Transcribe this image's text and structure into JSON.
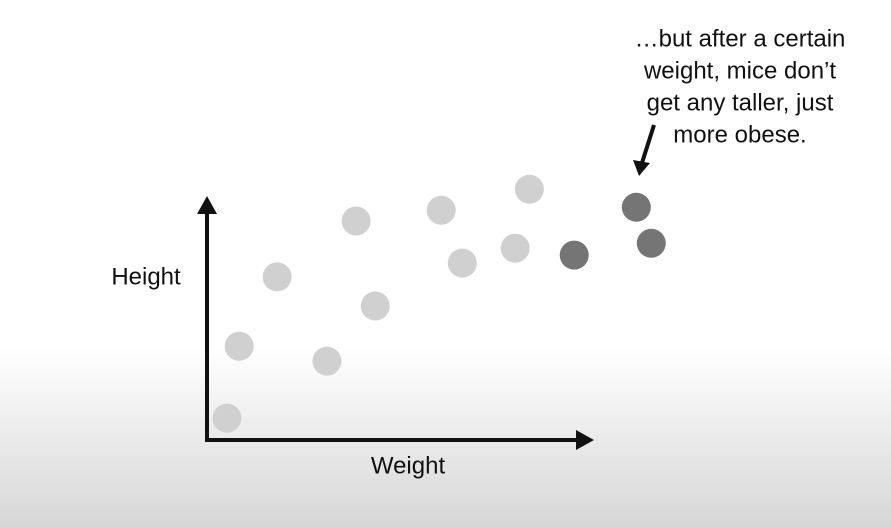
{
  "chart_data": {
    "type": "scatter",
    "x_label": "Weight",
    "y_label": "Height",
    "annotation": [
      "…but after a certain",
      "weight, mice don’t",
      "get any taller, just",
      "more obese."
    ],
    "xlim": [
      0,
      12
    ],
    "ylim": [
      0,
      7
    ],
    "series": [
      {
        "color": "#d0d0d0",
        "x": [
          0.52,
          0.84,
          1.83,
          3.13,
          3.89,
          4.39,
          6.11,
          6.66,
          8.04,
          8.41
        ],
        "values": [
          0.57,
          2.45,
          4.26,
          2.06,
          5.72,
          3.5,
          6.0,
          4.62,
          5.01,
          6.55
        ]
      },
      {
        "color": "#757575",
        "x": [
          9.58,
          11.2,
          11.59
        ],
        "values": [
          4.83,
          6.08,
          5.14
        ]
      }
    ]
  }
}
